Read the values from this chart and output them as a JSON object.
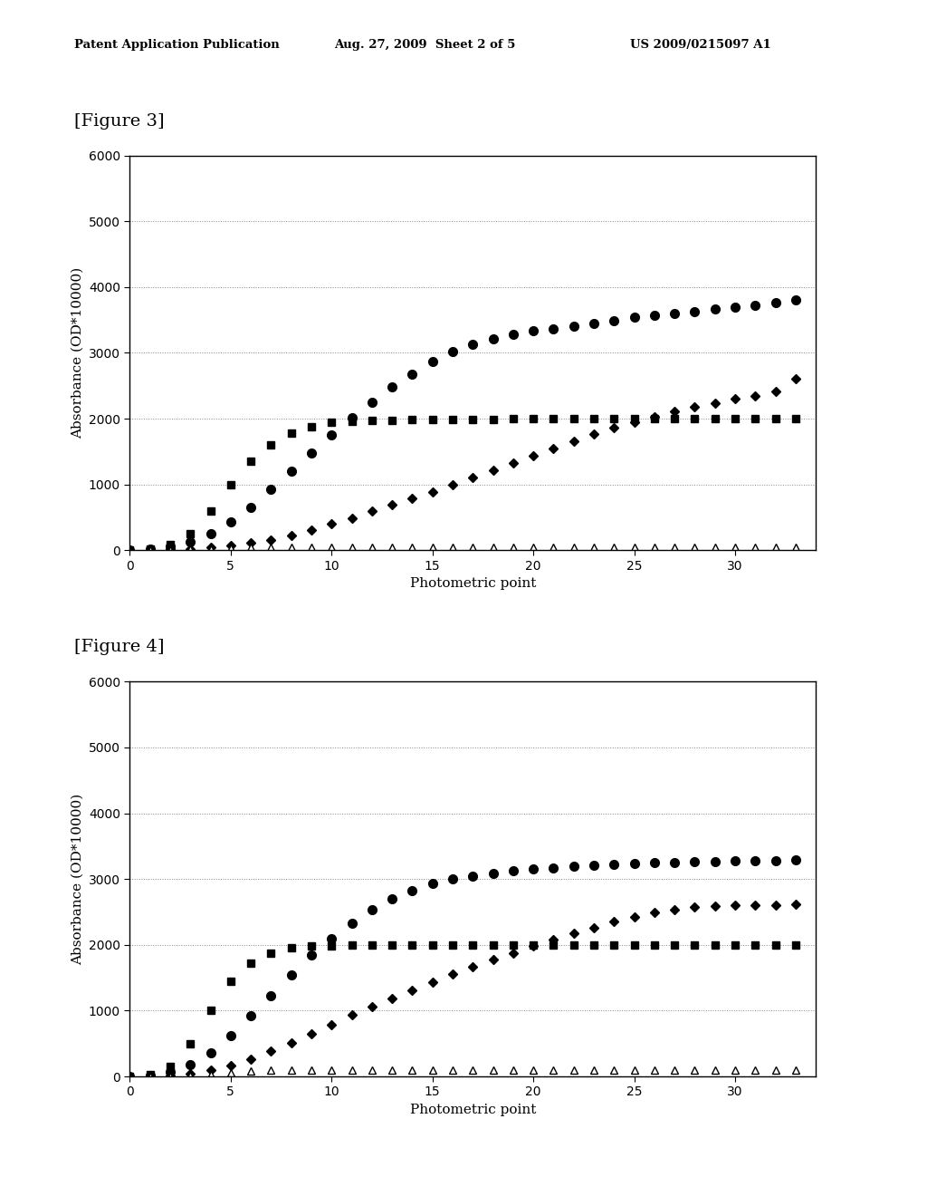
{
  "fig3": {
    "fig_label": "[Figure 3]",
    "xlabel": "Photometric point",
    "ylabel": "Absorbance (OD*10000)",
    "xlim": [
      0,
      34
    ],
    "ylim": [
      0,
      6000
    ],
    "yticks": [
      0,
      1000,
      2000,
      3000,
      4000,
      5000,
      6000
    ],
    "xticks": [
      0,
      5,
      10,
      15,
      20,
      25,
      30
    ],
    "series": {
      "circles": [
        0,
        20,
        60,
        130,
        250,
        430,
        650,
        920,
        1200,
        1470,
        1750,
        2020,
        2250,
        2480,
        2680,
        2870,
        3020,
        3130,
        3210,
        3280,
        3330,
        3370,
        3410,
        3450,
        3490,
        3540,
        3570,
        3600,
        3630,
        3660,
        3690,
        3720,
        3760,
        3800
      ],
      "squares": [
        0,
        20,
        80,
        250,
        600,
        1000,
        1350,
        1600,
        1780,
        1880,
        1940,
        1960,
        1970,
        1975,
        1980,
        1985,
        1990,
        1992,
        1993,
        1994,
        1995,
        1995,
        1995,
        1995,
        1995,
        1995,
        1995,
        1995,
        1995,
        1995,
        1995,
        1995,
        1995,
        1995
      ],
      "diamonds": [
        0,
        0,
        10,
        20,
        40,
        70,
        110,
        160,
        230,
        310,
        400,
        490,
        590,
        690,
        790,
        890,
        1000,
        1110,
        1220,
        1330,
        1440,
        1550,
        1660,
        1760,
        1860,
        1950,
        2030,
        2110,
        2180,
        2240,
        2300,
        2350,
        2420,
        2600
      ],
      "triangles": [
        0,
        0,
        0,
        10,
        20,
        30,
        40,
        50,
        50,
        50,
        50,
        50,
        50,
        50,
        50,
        50,
        50,
        50,
        50,
        50,
        50,
        50,
        50,
        50,
        50,
        50,
        50,
        50,
        50,
        50,
        50,
        50,
        50,
        50
      ]
    }
  },
  "fig4": {
    "fig_label": "[Figure 4]",
    "xlabel": "Photometric point",
    "ylabel": "Absorbance (OD*10000)",
    "xlim": [
      0,
      34
    ],
    "ylim": [
      0,
      6000
    ],
    "yticks": [
      0,
      1000,
      2000,
      3000,
      4000,
      5000,
      6000
    ],
    "xticks": [
      0,
      5,
      10,
      15,
      20,
      25,
      30
    ],
    "series": {
      "circles": [
        0,
        20,
        70,
        180,
        360,
        620,
        920,
        1230,
        1540,
        1840,
        2100,
        2330,
        2530,
        2700,
        2830,
        2930,
        3000,
        3050,
        3090,
        3120,
        3150,
        3170,
        3190,
        3210,
        3225,
        3235,
        3245,
        3255,
        3265,
        3270,
        3275,
        3280,
        3285,
        3290
      ],
      "squares": [
        0,
        30,
        150,
        500,
        1000,
        1450,
        1720,
        1870,
        1950,
        1980,
        1990,
        1995,
        1998,
        2000,
        2000,
        2000,
        2000,
        2000,
        2000,
        2000,
        2000,
        2000,
        2000,
        2000,
        2000,
        2000,
        2000,
        2000,
        2000,
        2000,
        2000,
        2000,
        2000,
        2000
      ],
      "diamonds": [
        0,
        0,
        10,
        40,
        90,
        160,
        260,
        380,
        510,
        650,
        790,
        930,
        1060,
        1190,
        1310,
        1430,
        1550,
        1670,
        1780,
        1880,
        1980,
        2080,
        2170,
        2260,
        2350,
        2430,
        2490,
        2540,
        2570,
        2590,
        2600,
        2605,
        2610,
        2615
      ],
      "triangles": [
        0,
        0,
        0,
        10,
        30,
        60,
        80,
        90,
        90,
        90,
        90,
        90,
        90,
        90,
        90,
        90,
        90,
        90,
        90,
        90,
        90,
        90,
        90,
        90,
        90,
        90,
        90,
        90,
        90,
        90,
        90,
        90,
        90,
        90
      ]
    }
  },
  "header_left": "Patent Application Publication",
  "header_mid": "Aug. 27, 2009  Sheet 2 of 5",
  "header_right": "US 2009/0215097 A1",
  "background_color": "#ffffff",
  "marker_color": "#000000",
  "grid_color": "#888888",
  "grid_style_solid": "-",
  "grid_style_dot": ":",
  "marker_size_circle": 7,
  "marker_size_square": 6,
  "marker_size_diamond": 5,
  "marker_size_triangle": 6
}
